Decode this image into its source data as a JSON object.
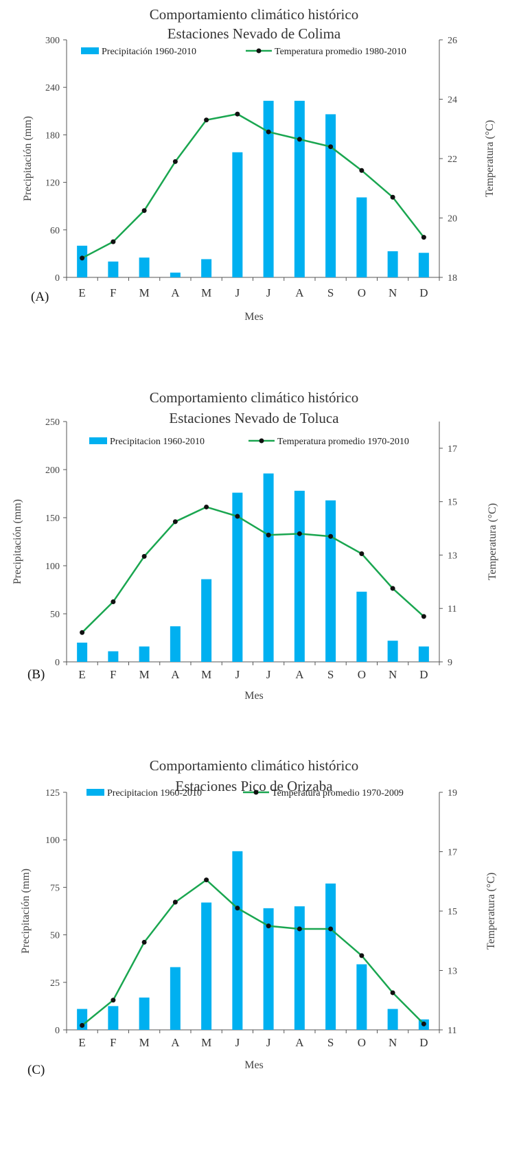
{
  "colors": {
    "bar": "#00b0f0",
    "line": "#1aa650",
    "marker": "#111111",
    "axis": "#555555"
  },
  "chart_data": [
    {
      "type": "bar",
      "panel_label": "(A)",
      "title": [
        "Comportamiento climático histórico",
        "Estaciones Nevado de Colima"
      ],
      "categories": [
        "E",
        "F",
        "M",
        "A",
        "M",
        "J",
        "J",
        "A",
        "S",
        "O",
        "N",
        "D"
      ],
      "xlabel": "Mes",
      "ylabel": "Precipitación (mm)",
      "y2label": "Temperatura (°C)",
      "ylim": [
        0,
        300
      ],
      "y_ticks": [
        0,
        60,
        120,
        180,
        240,
        300
      ],
      "y2lim": [
        18,
        26
      ],
      "y2_ticks": [
        18,
        20,
        22,
        24,
        26
      ],
      "series": [
        {
          "name": "Precipitación 1960-2010",
          "kind": "bar",
          "axis": "left",
          "values": [
            40,
            20,
            25,
            6,
            23,
            158,
            223,
            223,
            206,
            101,
            33,
            31
          ]
        },
        {
          "name": "Temperatura promedio 1980-2010",
          "kind": "line",
          "axis": "right",
          "values": [
            18.65,
            19.2,
            20.25,
            21.9,
            23.3,
            23.5,
            22.9,
            22.65,
            22.4,
            21.6,
            20.7,
            19.35
          ]
        }
      ]
    },
    {
      "type": "bar",
      "panel_label": "(B)",
      "title": [
        "Comportamiento climático histórico",
        "Estaciones Nevado de Toluca"
      ],
      "categories": [
        "E",
        "F",
        "M",
        "A",
        "M",
        "J",
        "J",
        "A",
        "S",
        "O",
        "N",
        "D"
      ],
      "xlabel": "Mes",
      "ylabel": "Precipitación (mm)",
      "y2label": "Temperatura (°C)",
      "ylim": [
        0,
        250
      ],
      "y_ticks": [
        0,
        50,
        100,
        150,
        200,
        250
      ],
      "y2lim": [
        9,
        18
      ],
      "y2_ticks": [
        9,
        11,
        13,
        15,
        17
      ],
      "series": [
        {
          "name": "Precipitacion 1960-2010",
          "kind": "bar",
          "axis": "left",
          "values": [
            20,
            11,
            16,
            37,
            86,
            176,
            196,
            178,
            168,
            73,
            22,
            16
          ]
        },
        {
          "name": "Temperatura promedio 1970-2010",
          "kind": "line",
          "axis": "right",
          "values": [
            10.1,
            11.25,
            12.95,
            14.25,
            14.8,
            14.45,
            13.75,
            13.8,
            13.7,
            13.05,
            11.75,
            10.7
          ]
        }
      ]
    },
    {
      "type": "bar",
      "panel_label": "(C)",
      "title": [
        "Comportamiento climático histórico",
        "Estaciones Pico de Orizaba"
      ],
      "categories": [
        "E",
        "F",
        "M",
        "A",
        "M",
        "J",
        "J",
        "A",
        "S",
        "O",
        "N",
        "D"
      ],
      "xlabel": "Mes",
      "ylabel": "Precipitación (mm)",
      "y2label": "Temperatura (°C)",
      "ylim": [
        0,
        125
      ],
      "y_ticks": [
        0,
        25,
        50,
        75,
        100,
        125
      ],
      "y2lim": [
        11,
        19
      ],
      "y2_ticks": [
        11,
        13,
        15,
        17,
        19
      ],
      "series": [
        {
          "name": "Precipitacion 1960-2010",
          "kind": "bar",
          "axis": "left",
          "values": [
            11,
            12.5,
            17,
            33,
            67,
            94,
            64,
            65,
            77,
            34.5,
            11,
            5.5
          ]
        },
        {
          "name": "Temperatura promedio 1970-2009",
          "kind": "line",
          "axis": "right",
          "values": [
            11.15,
            12.0,
            13.95,
            15.3,
            16.05,
            15.1,
            14.5,
            14.4,
            14.4,
            13.5,
            12.25,
            11.2
          ]
        }
      ]
    }
  ]
}
